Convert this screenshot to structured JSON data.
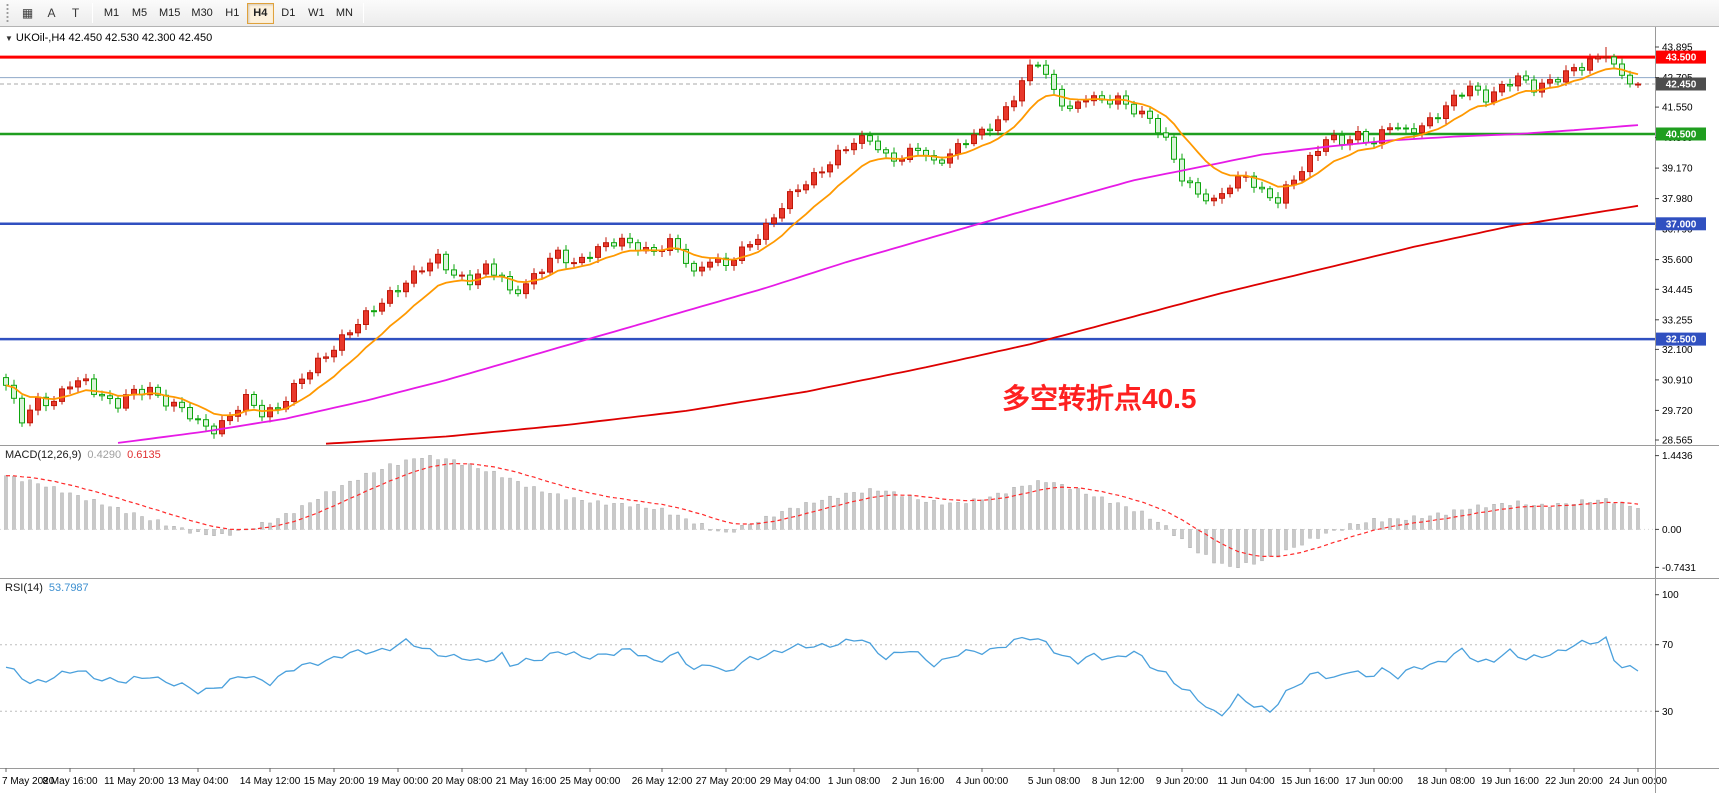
{
  "colors": {
    "up_fill": "#e8382c",
    "up_stroke": "#c01808",
    "down_fill": "#d9f4d9",
    "down_stroke": "#0da50d",
    "ma_fast": "#ff9900",
    "ma_mid": "#e61ae6",
    "ma_slow": "#dd0000",
    "macd_hist": "#c9c9c9",
    "macd_hist_stroke": "#aeaeae",
    "macd_signal": "#ff2a2a",
    "macd_value_main": "#a0a0a0",
    "macd_value_signal": "#e03030",
    "rsi_line": "#4aa0dc",
    "rsi_value": "#3c8fd0",
    "annotation": "#fe2020",
    "bid_badge": "#4d4d4d"
  },
  "toolbar": {
    "icons": [
      {
        "name": "chart-icon",
        "glyph": "▦"
      },
      {
        "name": "text-icon",
        "glyph": "A"
      },
      {
        "name": "label-icon",
        "glyph": "T"
      }
    ],
    "timeframes": [
      "M1",
      "M5",
      "M15",
      "M30",
      "H1",
      "H4",
      "D1",
      "W1",
      "MN"
    ],
    "active_timeframe": "H4"
  },
  "chart": {
    "collapse_icon": "▼",
    "symbol_line": "UKOil-,H4 42.450 42.530 42.300 42.450"
  },
  "annotation": {
    "text": "多空转折点40.5"
  },
  "macd": {
    "label": "MACD(12,26,9)",
    "main_value": "0.4290",
    "signal_value": "0.6135"
  },
  "rsi": {
    "label": "RSI(14)",
    "value": "53.7987"
  },
  "chart_data": {
    "type": "candlestick",
    "symbol": "UKOil-",
    "timeframe": "H4",
    "bars": 205,
    "current_ohlc": {
      "open": "42.450",
      "high": "42.530",
      "low": "42.300",
      "close": "42.450"
    },
    "main_range": [
      28.37,
      44.675
    ],
    "price_scale_labels": [
      "43.895",
      "42.705",
      "41.550",
      "40.360",
      "39.170",
      "37.980",
      "36.790",
      "35.600",
      "34.445",
      "33.255",
      "32.100",
      "30.910",
      "29.720",
      "28.565"
    ],
    "time_labels": [
      "7 May 2020",
      "8 May 16:00",
      "11 May 20:00",
      "13 May 04:00",
      "14 May 12:00",
      "15 May 20:00",
      "19 May 00:00",
      "20 May 08:00",
      "21 May 16:00",
      "25 May 00:00",
      "26 May 12:00",
      "27 May 20:00",
      "29 May 04:00",
      "1 Jun 08:00",
      "2 Jun 16:00",
      "4 Jun 00:00",
      "5 Jun 08:00",
      "8 Jun 12:00",
      "9 Jun 20:00",
      "11 Jun 04:00",
      "15 Jun 16:00",
      "17 Jun 00:00",
      "18 Jun 08:00",
      "19 Jun 16:00",
      "22 Jun 20:00",
      "24 Jun 00:00"
    ],
    "levels": [
      {
        "value": 43.5,
        "label": "43.500",
        "color": "#ff0000",
        "width": 3,
        "badge": "#ff0000",
        "style": "solid"
      },
      {
        "value": 42.7,
        "label": "",
        "color": "#8fa8c8",
        "width": 1,
        "badge": "",
        "style": "solid"
      },
      {
        "value": 42.45,
        "label": "42.450",
        "color": "#aaaaaa",
        "width": 1,
        "badge": "#4d4d4d",
        "style": "dash"
      },
      {
        "value": 40.5,
        "label": "40.500",
        "color": "#1f9e1f",
        "width": 2.5,
        "badge": "#1f9e1f",
        "style": "solid"
      },
      {
        "value": 37.0,
        "label": "37.000",
        "color": "#3050c0",
        "width": 2.5,
        "badge": "#3050c0",
        "style": "solid"
      },
      {
        "value": 32.5,
        "label": "32.500",
        "color": "#3050c0",
        "width": 2.5,
        "badge": "#3050c0",
        "style": "solid"
      }
    ],
    "price_path": [
      [
        0,
        30.6
      ],
      [
        2,
        29.4
      ],
      [
        4,
        30.2
      ],
      [
        6,
        30.0
      ],
      [
        8,
        30.7
      ],
      [
        10,
        30.9
      ],
      [
        12,
        30.3
      ],
      [
        14,
        29.9
      ],
      [
        16,
        30.4
      ],
      [
        18,
        30.6
      ],
      [
        20,
        30.1
      ],
      [
        22,
        29.7
      ],
      [
        24,
        29.2
      ],
      [
        26,
        29.05
      ],
      [
        28,
        29.5
      ],
      [
        30,
        30.1
      ],
      [
        32,
        29.6
      ],
      [
        34,
        29.9
      ],
      [
        36,
        30.6
      ],
      [
        38,
        31.2
      ],
      [
        40,
        31.9
      ],
      [
        42,
        32.6
      ],
      [
        44,
        33.1
      ],
      [
        46,
        33.6
      ],
      [
        48,
        34.3
      ],
      [
        50,
        34.8
      ],
      [
        52,
        35.2
      ],
      [
        54,
        35.6
      ],
      [
        56,
        35.1
      ],
      [
        58,
        34.8
      ],
      [
        60,
        35.2
      ],
      [
        62,
        34.9
      ],
      [
        63,
        34.35
      ],
      [
        65,
        34.7
      ],
      [
        67,
        35.2
      ],
      [
        69,
        35.8
      ],
      [
        71,
        35.5
      ],
      [
        73,
        35.9
      ],
      [
        75,
        36.1
      ],
      [
        77,
        36.3
      ],
      [
        79,
        36.2
      ],
      [
        81,
        35.9
      ],
      [
        83,
        36.2
      ],
      [
        85,
        35.6
      ],
      [
        86,
        35.1
      ],
      [
        88,
        35.7
      ],
      [
        90,
        35.3
      ],
      [
        92,
        35.9
      ],
      [
        94,
        36.6
      ],
      [
        96,
        37.3
      ],
      [
        98,
        38.0
      ],
      [
        100,
        38.6
      ],
      [
        102,
        39.2
      ],
      [
        104,
        39.7
      ],
      [
        106,
        40.1
      ],
      [
        108,
        40.35
      ],
      [
        110,
        39.7
      ],
      [
        112,
        39.5
      ],
      [
        114,
        39.9
      ],
      [
        116,
        39.4
      ],
      [
        118,
        39.8
      ],
      [
        120,
        40.2
      ],
      [
        122,
        40.5
      ],
      [
        124,
        41.1
      ],
      [
        126,
        42.0
      ],
      [
        128,
        43.0
      ],
      [
        129,
        43.25
      ],
      [
        131,
        42.2
      ],
      [
        133,
        41.5
      ],
      [
        135,
        41.9
      ],
      [
        137,
        41.7
      ],
      [
        139,
        41.95
      ],
      [
        141,
        41.5
      ],
      [
        143,
        41.0
      ],
      [
        145,
        40.2
      ],
      [
        147,
        38.9
      ],
      [
        149,
        38.2
      ],
      [
        151,
        37.75
      ],
      [
        153,
        38.5
      ],
      [
        155,
        39.0
      ],
      [
        157,
        38.2
      ],
      [
        159,
        37.8
      ],
      [
        161,
        38.8
      ],
      [
        163,
        39.6
      ],
      [
        165,
        40.3
      ],
      [
        167,
        40.1
      ],
      [
        169,
        40.5
      ],
      [
        171,
        40.25
      ],
      [
        173,
        40.8
      ],
      [
        175,
        40.5
      ],
      [
        177,
        40.9
      ],
      [
        179,
        41.3
      ],
      [
        181,
        41.8
      ],
      [
        183,
        42.3
      ],
      [
        185,
        42.0
      ],
      [
        187,
        42.35
      ],
      [
        189,
        42.6
      ],
      [
        191,
        42.3
      ],
      [
        193,
        42.65
      ],
      [
        195,
        42.85
      ],
      [
        197,
        43.05
      ],
      [
        199,
        43.5
      ],
      [
        200,
        43.75
      ],
      [
        201,
        43.2
      ],
      [
        202,
        42.8
      ],
      [
        203,
        42.55
      ],
      [
        204,
        42.45
      ]
    ],
    "ma_fast_period": 10,
    "ma_mid_path": [
      [
        14,
        28.45
      ],
      [
        25,
        28.9
      ],
      [
        35,
        29.4
      ],
      [
        45,
        30.1
      ],
      [
        55,
        30.9
      ],
      [
        65,
        31.8
      ],
      [
        75,
        32.7
      ],
      [
        85,
        33.6
      ],
      [
        95,
        34.5
      ],
      [
        105,
        35.5
      ],
      [
        115,
        36.4
      ],
      [
        125,
        37.3
      ],
      [
        133,
        38.0
      ],
      [
        141,
        38.7
      ],
      [
        149,
        39.2
      ],
      [
        157,
        39.7
      ],
      [
        165,
        40.0
      ],
      [
        173,
        40.25
      ],
      [
        181,
        40.4
      ],
      [
        189,
        40.5
      ],
      [
        196,
        40.65
      ],
      [
        204,
        40.85
      ]
    ],
    "ma_slow_path": [
      [
        40,
        28.42
      ],
      [
        55,
        28.7
      ],
      [
        70,
        29.15
      ],
      [
        85,
        29.7
      ],
      [
        100,
        30.45
      ],
      [
        115,
        31.4
      ],
      [
        128,
        32.3
      ],
      [
        140,
        33.3
      ],
      [
        152,
        34.3
      ],
      [
        164,
        35.2
      ],
      [
        176,
        36.1
      ],
      [
        188,
        36.9
      ],
      [
        196,
        37.3
      ],
      [
        204,
        37.7
      ]
    ],
    "macd_panel": {
      "range": [
        -0.95,
        1.65
      ],
      "scale_labels": [
        "1.4436",
        "0.00",
        "-0.7431"
      ],
      "path": [
        [
          0,
          1.05
        ],
        [
          4,
          0.9
        ],
        [
          8,
          0.7
        ],
        [
          12,
          0.5
        ],
        [
          16,
          0.3
        ],
        [
          20,
          0.1
        ],
        [
          24,
          -0.08
        ],
        [
          27,
          -0.12
        ],
        [
          30,
          0.0
        ],
        [
          33,
          0.15
        ],
        [
          36,
          0.35
        ],
        [
          40,
          0.7
        ],
        [
          44,
          1.0
        ],
        [
          48,
          1.25
        ],
        [
          52,
          1.42
        ],
        [
          55,
          1.38
        ],
        [
          58,
          1.25
        ],
        [
          62,
          1.05
        ],
        [
          66,
          0.8
        ],
        [
          70,
          0.62
        ],
        [
          74,
          0.52
        ],
        [
          78,
          0.48
        ],
        [
          82,
          0.38
        ],
        [
          85,
          0.2
        ],
        [
          88,
          0.02
        ],
        [
          90,
          -0.08
        ],
        [
          92,
          0.05
        ],
        [
          95,
          0.22
        ],
        [
          98,
          0.4
        ],
        [
          102,
          0.58
        ],
        [
          106,
          0.72
        ],
        [
          109,
          0.78
        ],
        [
          112,
          0.68
        ],
        [
          115,
          0.55
        ],
        [
          118,
          0.5
        ],
        [
          121,
          0.56
        ],
        [
          124,
          0.68
        ],
        [
          127,
          0.85
        ],
        [
          130,
          0.95
        ],
        [
          133,
          0.82
        ],
        [
          136,
          0.65
        ],
        [
          139,
          0.5
        ],
        [
          142,
          0.32
        ],
        [
          145,
          0.05
        ],
        [
          148,
          -0.35
        ],
        [
          151,
          -0.62
        ],
        [
          153,
          -0.74
        ],
        [
          156,
          -0.66
        ],
        [
          159,
          -0.5
        ],
        [
          162,
          -0.28
        ],
        [
          165,
          -0.08
        ],
        [
          168,
          0.08
        ],
        [
          171,
          0.18
        ],
        [
          174,
          0.2
        ],
        [
          177,
          0.24
        ],
        [
          180,
          0.32
        ],
        [
          183,
          0.42
        ],
        [
          186,
          0.48
        ],
        [
          189,
          0.52
        ],
        [
          192,
          0.46
        ],
        [
          195,
          0.5
        ],
        [
          198,
          0.56
        ],
        [
          200,
          0.58
        ],
        [
          202,
          0.5
        ],
        [
          204,
          0.429
        ]
      ]
    },
    "rsi_panel": {
      "range": [
        -4,
        110
      ],
      "scale_labels": [
        "100",
        "70",
        "30"
      ],
      "levels": [
        70,
        30
      ],
      "path": [
        [
          0,
          56
        ],
        [
          3,
          47
        ],
        [
          6,
          51
        ],
        [
          9,
          54
        ],
        [
          12,
          50
        ],
        [
          15,
          47
        ],
        [
          18,
          52
        ],
        [
          21,
          46
        ],
        [
          24,
          42
        ],
        [
          27,
          46
        ],
        [
          30,
          51
        ],
        [
          33,
          48
        ],
        [
          36,
          55
        ],
        [
          39,
          60
        ],
        [
          42,
          63
        ],
        [
          45,
          66
        ],
        [
          48,
          68
        ],
        [
          50,
          71
        ],
        [
          53,
          67
        ],
        [
          56,
          62
        ],
        [
          59,
          60
        ],
        [
          62,
          64
        ],
        [
          63,
          57
        ],
        [
          66,
          61
        ],
        [
          69,
          66
        ],
        [
          72,
          62
        ],
        [
          75,
          65
        ],
        [
          78,
          66
        ],
        [
          81,
          61
        ],
        [
          84,
          64
        ],
        [
          86,
          54
        ],
        [
          88,
          60
        ],
        [
          90,
          53
        ],
        [
          93,
          61
        ],
        [
          96,
          66
        ],
        [
          99,
          68
        ],
        [
          102,
          70
        ],
        [
          105,
          71
        ],
        [
          107,
          73
        ],
        [
          110,
          63
        ],
        [
          113,
          66
        ],
        [
          116,
          59
        ],
        [
          119,
          64
        ],
        [
          122,
          66
        ],
        [
          125,
          70
        ],
        [
          128,
          74
        ],
        [
          130,
          72
        ],
        [
          132,
          63
        ],
        [
          134,
          59
        ],
        [
          136,
          64
        ],
        [
          139,
          62
        ],
        [
          141,
          65
        ],
        [
          143,
          58
        ],
        [
          145,
          53
        ],
        [
          147,
          43
        ],
        [
          149,
          37
        ],
        [
          151,
          30
        ],
        [
          152,
          29
        ],
        [
          154,
          38
        ],
        [
          156,
          33
        ],
        [
          158,
          31
        ],
        [
          160,
          41
        ],
        [
          162,
          47
        ],
        [
          164,
          54
        ],
        [
          166,
          50
        ],
        [
          168,
          54
        ],
        [
          170,
          50
        ],
        [
          172,
          56
        ],
        [
          174,
          51
        ],
        [
          176,
          55
        ],
        [
          178,
          58
        ],
        [
          180,
          62
        ],
        [
          182,
          66
        ],
        [
          184,
          59
        ],
        [
          186,
          62
        ],
        [
          188,
          66
        ],
        [
          190,
          60
        ],
        [
          192,
          64
        ],
        [
          194,
          66
        ],
        [
          196,
          69
        ],
        [
          198,
          71
        ],
        [
          200,
          74
        ],
        [
          201,
          62
        ],
        [
          202,
          57
        ],
        [
          203,
          55
        ],
        [
          204,
          53.8
        ]
      ]
    }
  }
}
